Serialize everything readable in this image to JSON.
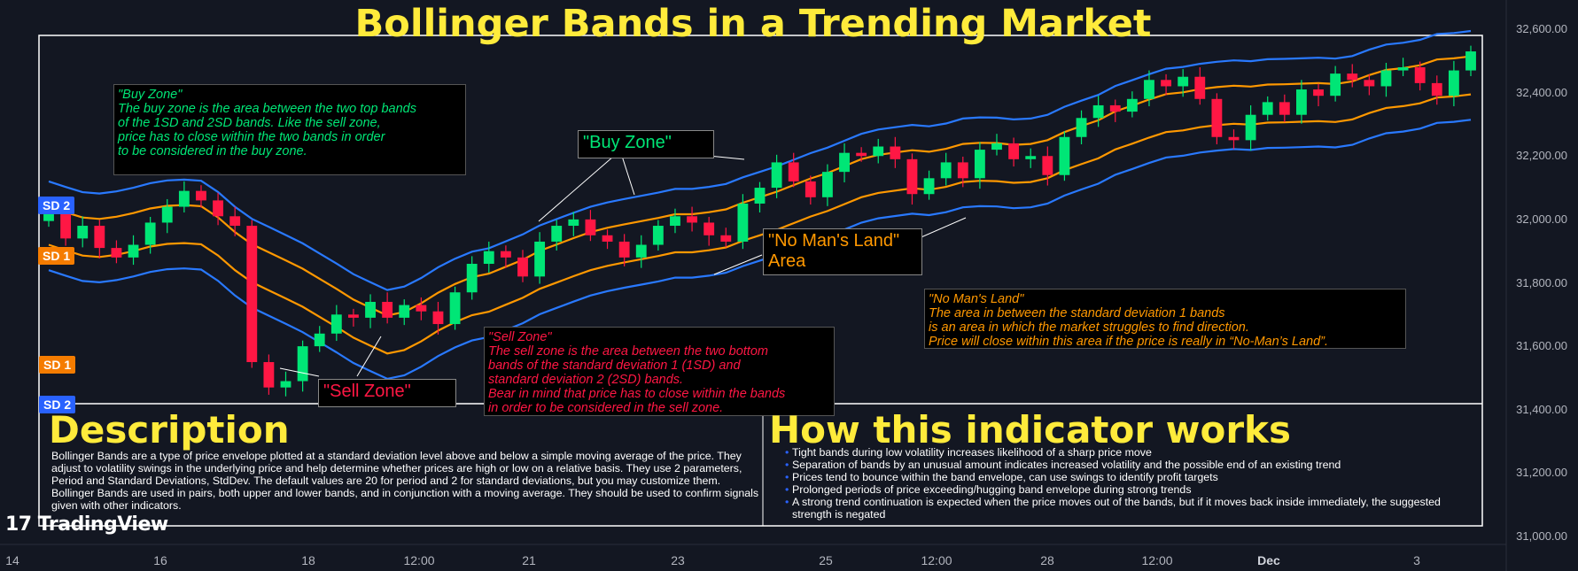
{
  "title": "Bollinger Bands in a Trending Market",
  "annotations": {
    "buy_zone_note": "\"Buy Zone\"\nThe buy zone is the area between the two top bands\nof the 1SD and 2SD bands. Like the sell zone,\n price has to close within the two bands in order\nto be considered in the buy zone.",
    "buy_zone_label": "\"Buy Zone\"",
    "nomans_label": "\"No Man's Land\"\nArea",
    "nomans_note": "\"No Man's Land\"\nThe area in between the standard deviation 1 bands\n is an area in which the market struggles to find direction.\nPrice will close within this area if the price is really in “No-Man’s Land”.",
    "sell_zone_note": "\"Sell Zone\"\nThe sell zone is the area between the two bottom\n bands of the standard deviation 1 (1SD) and\n standard deviation 2 (2SD) bands.\nBear in mind that price has to close within the bands\n in order to be considered in the sell zone.",
    "sell_zone_label": "\"Sell Zone\""
  },
  "band_tags": {
    "sd2_top": "SD 2",
    "sd1_top": "SD 1",
    "sd1_bottom": "SD 1",
    "sd2_bottom": "SD 2"
  },
  "description": {
    "heading": "Description",
    "text": "Bollinger Bands are a type of price envelope plotted at a standard deviation level above and below a simple moving average of the price. They adjust to volatility swings in the underlying price and help determine whether prices are high or low on a relative basis. They use 2 parameters, Period and Standard Deviations, StdDev. The default values are 20 for period and 2 for standard deviations, but you may customize them. Bollinger Bands are used in pairs, both upper and lower bands, and in conjunction with a moving average. They should be used to confirm signals given with other indicators."
  },
  "how_it_works": {
    "heading": "How this indicator works",
    "items": [
      "Tight bands during low volatility increases likelihood of a sharp price move",
      "Separation of bands by an unusual amount indicates increased volatility and the possible end of an existing trend",
      "Prices tend to bounce within the band envelope, can use swings to identify profit targets",
      "Prolonged periods of price exceeding/hugging band envelope during strong trends",
      "A strong trend continuation is expected when the price moves out of the bands, but if it moves back inside immediately, the suggested strength is negated"
    ]
  },
  "brand": "TradingView",
  "colors": {
    "up": "#00e676",
    "down": "#ff1744",
    "sd2_band": "#2979ff",
    "sd1_band": "#ff9800",
    "accent_title": "#ffeb3b"
  },
  "chart_data": {
    "type": "candlestick",
    "ylim": [
      31000,
      32600
    ],
    "y_ticks": [
      "32,600.00",
      "32,400.00",
      "32,200.00",
      "32,000.00",
      "31,800.00",
      "31,600.00",
      "31,400.00",
      "31,200.00",
      "31,000.00"
    ],
    "x_ticks": [
      {
        "label": "14",
        "bold": false
      },
      {
        "label": "16",
        "bold": false
      },
      {
        "label": "18",
        "bold": false
      },
      {
        "label": "12:00",
        "bold": false
      },
      {
        "label": "21",
        "bold": false
      },
      {
        "label": "23",
        "bold": false
      },
      {
        "label": "25",
        "bold": false
      },
      {
        "label": "12:00",
        "bold": false
      },
      {
        "label": "28",
        "bold": false
      },
      {
        "label": "12:00",
        "bold": false
      },
      {
        "label": "Dec",
        "bold": true
      },
      {
        "label": "3",
        "bold": false
      }
    ],
    "closes": [
      32020,
      31940,
      31980,
      31910,
      31880,
      31920,
      31990,
      32040,
      32090,
      32060,
      32010,
      31980,
      31550,
      31470,
      31490,
      31600,
      31640,
      31700,
      31690,
      31740,
      31690,
      31730,
      31710,
      31670,
      31770,
      31860,
      31900,
      31880,
      31820,
      31930,
      31980,
      32000,
      31950,
      31930,
      31880,
      31920,
      31980,
      32010,
      31990,
      31950,
      31930,
      32050,
      32100,
      32180,
      32120,
      32070,
      32150,
      32210,
      32200,
      32230,
      32190,
      32080,
      32130,
      32180,
      32130,
      32220,
      32240,
      32190,
      32200,
      32140,
      32260,
      32320,
      32360,
      32340,
      32380,
      32440,
      32420,
      32450,
      32380,
      32260,
      32250,
      32330,
      32370,
      32330,
      32410,
      32390,
      32460,
      32440,
      32420,
      32470,
      32480,
      32430,
      32390,
      32470,
      32530
    ]
  }
}
